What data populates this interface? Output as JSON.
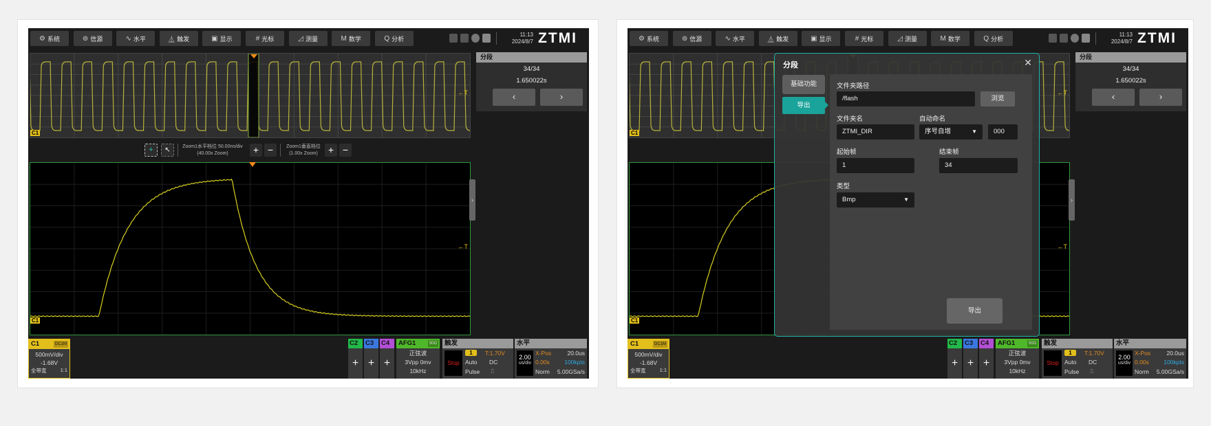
{
  "toolbar": {
    "items": [
      {
        "label": "系统",
        "icon": "gear-icon",
        "glyph": "⚙"
      },
      {
        "label": "信源",
        "icon": "source-icon",
        "glyph": "⊚"
      },
      {
        "label": "水平",
        "icon": "horizontal-icon",
        "glyph": "∿"
      },
      {
        "label": "触发",
        "icon": "trigger-icon",
        "glyph": "⏅"
      },
      {
        "label": "显示",
        "icon": "display-icon",
        "glyph": "▣"
      },
      {
        "label": "光标",
        "icon": "cursor-icon",
        "glyph": "#"
      },
      {
        "label": "测量",
        "icon": "measure-icon",
        "glyph": "◿"
      },
      {
        "label": "数学",
        "icon": "math-icon",
        "glyph": "M"
      },
      {
        "label": "分析",
        "icon": "analyze-icon",
        "glyph": "Q"
      }
    ]
  },
  "status": {
    "time": "11:13",
    "date": "2024/8/7",
    "logo": "ZTMI"
  },
  "segment": {
    "title": "分段",
    "frame": "34/34",
    "timestamp": "1.650022s",
    "prev": "‹",
    "next": "›"
  },
  "zoom": {
    "h_line1": "Zoom1水平档位  50.00ns/div",
    "h_line2": "(40.00x Zoom)",
    "v_line1": "Zoom1垂直档位",
    "v_line2": "(1.00x Zoom)",
    "plus": "+",
    "minus": "−"
  },
  "markers": {
    "channel": "C1",
    "trigger": "T"
  },
  "c1": {
    "label": "C1",
    "coupling": "DC1M",
    "scale": "500mV/div",
    "offset": "-1.68V",
    "bandwidth": "全带宽",
    "probe": "1:1",
    "color": "#e3bf1c"
  },
  "channels": [
    {
      "label": "C2",
      "color": "#22b84a"
    },
    {
      "label": "C3",
      "color": "#3a78e0"
    },
    {
      "label": "C4",
      "color": "#b24fd6"
    }
  ],
  "afg": {
    "label": "AFG1",
    "imp": "50Ω",
    "wave": "正弦波",
    "amp": "3Vpp  0mv",
    "freq": "10kHz"
  },
  "trigger": {
    "title": "触发",
    "state": "Stop",
    "source": "1",
    "level": "T:1.70V",
    "mode": "Auto",
    "coupling": "DC",
    "type": "Pulse"
  },
  "horizontal": {
    "title": "水平",
    "scale": "2.00",
    "unit": "us/div",
    "xpos_label": "X-Pos",
    "xpos": "20.0us",
    "offset": "0.00s",
    "points": "100kpts",
    "acq": "Norm",
    "rate": "5.00GSa/s"
  },
  "dialog": {
    "title": "分段",
    "tabs": [
      "基础功能",
      "导出"
    ],
    "active_tab": 1,
    "path_label": "文件夹路径",
    "path": "/flash",
    "browse": "浏览",
    "name_label": "文件夹名",
    "name": "ZTMI_DIR",
    "auto_label": "自动命名",
    "auto": "序号自增",
    "auto_num": "000",
    "start_label": "起始帧",
    "start": "1",
    "end_label": "结束帧",
    "end": "34",
    "type_label": "类型",
    "type": "Bmp",
    "export": "导出",
    "close": "✕"
  },
  "colors": {
    "accent": "#1aa39a",
    "waveform": "#d8d01e",
    "main_border": "#2f9a3a",
    "trigger_marker": "#f08a1a"
  }
}
